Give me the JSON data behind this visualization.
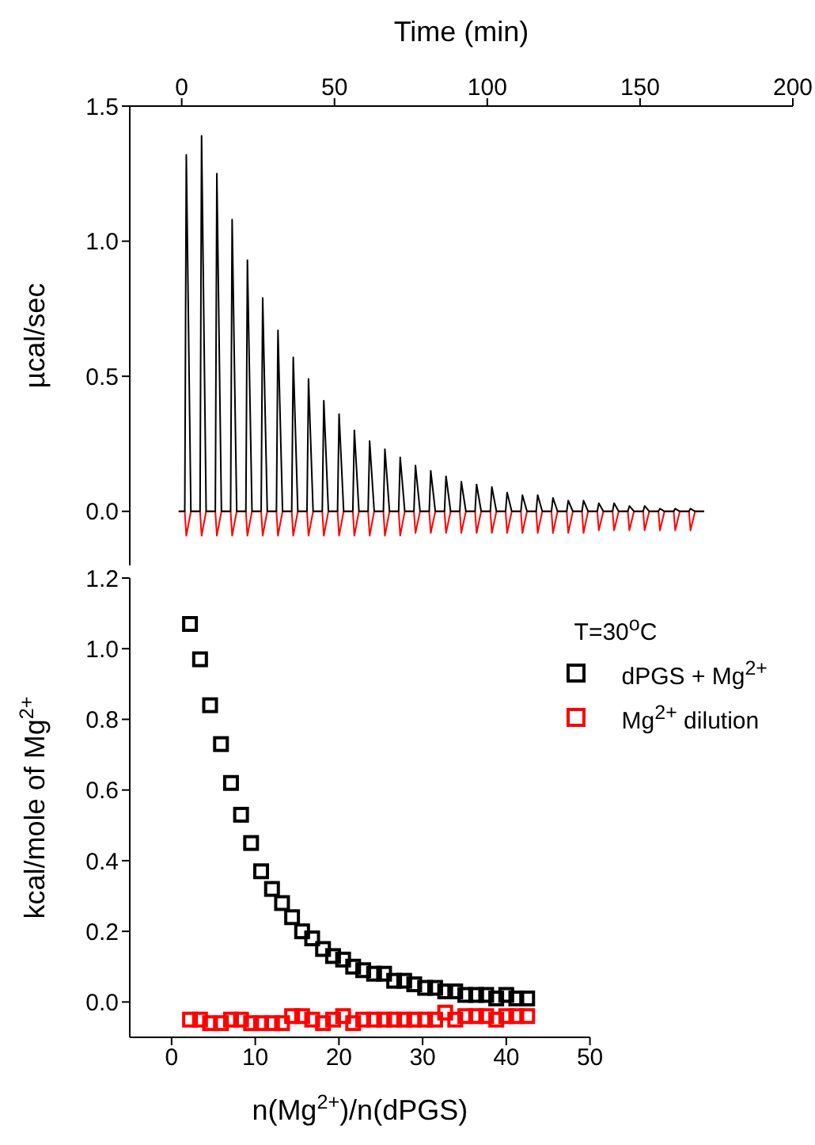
{
  "chart_data": [
    {
      "type": "line",
      "xlabel": "Time (min)",
      "ylabel": "µcal/sec",
      "xlim": [
        -17,
        200
      ],
      "xticks": [
        0,
        50,
        100,
        150,
        200
      ],
      "ylim": [
        -0.2,
        1.5
      ],
      "yticks": [
        {
          "value": 0,
          "label": "0.0"
        },
        {
          "value": 0.5,
          "label": "0.5"
        },
        {
          "value": 1,
          "label": "1.0"
        },
        {
          "value": 1.5,
          "label": "1.5"
        }
      ],
      "grid": false,
      "legend": false,
      "marker": "none",
      "line_style": "solid",
      "x": [
        -1,
        1,
        1.5,
        3,
        6,
        6.5,
        8,
        11,
        11.5,
        13,
        16,
        16.5,
        18,
        21,
        21.5,
        23,
        26,
        26.5,
        28,
        31,
        31.5,
        33,
        36,
        36.5,
        38,
        41,
        41.5,
        43,
        46,
        46.5,
        48,
        51,
        51.5,
        53,
        56,
        56.5,
        58,
        61,
        61.5,
        63,
        66,
        66.5,
        68,
        71,
        71.5,
        73,
        76,
        76.5,
        78,
        81,
        81.5,
        83,
        86,
        86.5,
        88,
        91,
        91.5,
        93,
        96,
        96.5,
        98,
        101,
        101.5,
        103,
        106,
        106.5,
        108,
        111,
        111.5,
        113,
        116,
        116.5,
        118,
        121,
        121.5,
        123,
        126,
        126.5,
        128,
        131,
        131.5,
        133,
        136,
        136.5,
        138,
        141,
        141.5,
        143,
        146,
        146.5,
        148,
        151,
        151.5,
        153,
        156,
        156.5,
        158,
        161,
        161.5,
        163,
        166,
        166.5,
        168,
        171
      ],
      "series": [
        {
          "color": "#ff0000",
          "values": [
            0,
            0,
            -0.09,
            0,
            0,
            -0.09,
            0,
            0,
            -0.09,
            0,
            0,
            -0.09,
            0,
            0,
            -0.09,
            0,
            0,
            -0.09,
            0,
            0,
            -0.09,
            0,
            0,
            -0.09,
            0,
            0,
            -0.09,
            0,
            0,
            -0.09,
            0,
            0,
            -0.09,
            0,
            0,
            -0.09,
            0,
            0,
            -0.09,
            0,
            0,
            -0.09,
            0,
            0,
            -0.09,
            0,
            0,
            -0.08,
            0,
            0,
            -0.08,
            0,
            0,
            -0.08,
            0,
            0,
            -0.08,
            0,
            0,
            -0.08,
            0,
            0,
            -0.08,
            0,
            0,
            -0.08,
            0,
            0,
            -0.08,
            0,
            0,
            -0.08,
            0,
            0,
            -0.08,
            0,
            0,
            -0.08,
            0,
            0,
            -0.08,
            0,
            0,
            -0.07,
            0,
            0,
            -0.07,
            0,
            0,
            -0.07,
            0,
            0,
            -0.07,
            0,
            0,
            -0.07,
            0,
            0,
            -0.07,
            0,
            0,
            -0.07,
            0,
            0
          ]
        },
        {
          "color": "#000000",
          "values": [
            0,
            0,
            1.32,
            0,
            0,
            1.39,
            0,
            0,
            1.25,
            0,
            0,
            1.08,
            0,
            0,
            0.93,
            0,
            0,
            0.79,
            0,
            0,
            0.67,
            0,
            0,
            0.57,
            0,
            0,
            0.49,
            0,
            0,
            0.41,
            0,
            0,
            0.36,
            0,
            0,
            0.3,
            0,
            0,
            0.26,
            0,
            0,
            0.23,
            0,
            0,
            0.2,
            0,
            0,
            0.17,
            0,
            0,
            0.15,
            0,
            0,
            0.13,
            0,
            0,
            0.11,
            0,
            0,
            0.1,
            0,
            0,
            0.09,
            0,
            0,
            0.07,
            0,
            0,
            0.06,
            0,
            0,
            0.06,
            0,
            0,
            0.05,
            0,
            0,
            0.04,
            0,
            0,
            0.04,
            0,
            0,
            0.03,
            0,
            0,
            0.03,
            0,
            0,
            0.02,
            0,
            0,
            0.02,
            0,
            0,
            0.01,
            0,
            0,
            0.01,
            0,
            0,
            0.01,
            0,
            0
          ]
        }
      ]
    },
    {
      "type": "scatter",
      "xlabel": "n(Mg$^{2+}$)/n(dPGS)",
      "ylabel": "kcal/mole of Mg$^{2+}$",
      "annotations": [
        "T=30$^{o}$C"
      ],
      "xlim": [
        -5,
        50
      ],
      "xticks": [
        0,
        10,
        20,
        30,
        40,
        50
      ],
      "ylim": [
        -0.1,
        1.2
      ],
      "yticks": [
        {
          "value": 0,
          "label": "0.0"
        },
        {
          "value": 0.2,
          "label": "0.2"
        },
        {
          "value": 0.4,
          "label": "0.4"
        },
        {
          "value": 0.6,
          "label": "0.6"
        },
        {
          "value": 0.8,
          "label": "0.8"
        },
        {
          "value": 1,
          "label": "1.0"
        },
        {
          "value": 1.2,
          "label": "1.2"
        }
      ],
      "grid": false,
      "legend": "top right",
      "marker": "square",
      "x": [
        2.2,
        3.4,
        4.6,
        5.9,
        7.1,
        8.3,
        9.5,
        10.7,
        12.0,
        13.2,
        14.4,
        15.6,
        16.8,
        18.1,
        19.3,
        20.5,
        21.7,
        22.9,
        24.2,
        25.4,
        26.6,
        27.8,
        29.0,
        30.3,
        31.5,
        32.7,
        33.9,
        35.1,
        36.4,
        37.6,
        38.8,
        40.0,
        41.2,
        42.5
      ],
      "series": [
        {
          "name": "dPGS + Mg$^{2+}$",
          "color": "#000000",
          "values": [
            1.07,
            0.97,
            0.84,
            0.73,
            0.62,
            0.53,
            0.45,
            0.37,
            0.32,
            0.28,
            0.24,
            0.2,
            0.18,
            0.15,
            0.13,
            0.12,
            0.1,
            0.09,
            0.08,
            0.08,
            0.06,
            0.06,
            0.05,
            0.04,
            0.04,
            0.03,
            0.03,
            0.02,
            0.02,
            0.02,
            0.01,
            0.02,
            0.01,
            0.01
          ]
        },
        {
          "name": "Mg$^{2+}$ dilution",
          "color": "#ff0000",
          "values": [
            -0.05,
            -0.05,
            -0.06,
            -0.06,
            -0.05,
            -0.05,
            -0.06,
            -0.06,
            -0.06,
            -0.06,
            -0.04,
            -0.04,
            -0.05,
            -0.06,
            -0.05,
            -0.04,
            -0.06,
            -0.05,
            -0.05,
            -0.05,
            -0.05,
            -0.05,
            -0.05,
            -0.05,
            -0.05,
            -0.03,
            -0.05,
            -0.04,
            -0.04,
            -0.04,
            -0.05,
            -0.04,
            -0.04,
            -0.04
          ]
        }
      ]
    }
  ]
}
